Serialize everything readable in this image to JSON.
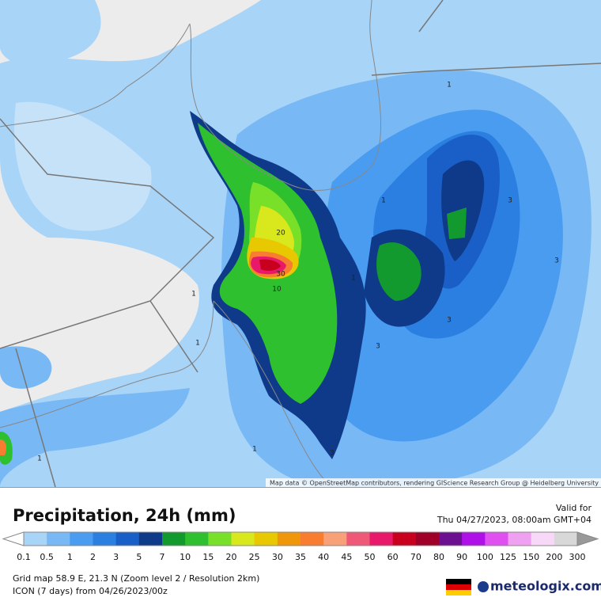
{
  "map": {
    "attribution": "Map data © OpenStreetMap contributors, rendering GIScience Research Group @ Heidelberg University",
    "contour_labels": [
      "1",
      "1",
      "1",
      "1",
      "1",
      "1",
      "1",
      "3",
      "3",
      "3",
      "3",
      "3",
      "10",
      "20",
      "30"
    ]
  },
  "header": {
    "title": "Precipitation, 24h (mm)",
    "valid_label": "Valid for",
    "valid_time": "Thu 04/27/2023, 08:00am GMT+04"
  },
  "legend": {
    "labels": [
      "0.1",
      "0.5",
      "1",
      "2",
      "3",
      "5",
      "7",
      "10",
      "15",
      "20",
      "25",
      "30",
      "35",
      "40",
      "45",
      "50",
      "60",
      "70",
      "80",
      "90",
      "100",
      "125",
      "150",
      "200",
      "300"
    ],
    "colors": [
      "#a8d4f8",
      "#78b8f5",
      "#4a9cf0",
      "#2a7fe0",
      "#1a5fc8",
      "#0f3a8a",
      "#139a2e",
      "#2ec02e",
      "#78e028",
      "#d8e81c",
      "#e8c800",
      "#f0960a",
      "#f87d30",
      "#f8a078",
      "#f05878",
      "#e8186a",
      "#c8001e",
      "#a00028",
      "#6a1090",
      "#b010e8",
      "#e050f0",
      "#f0a0f0",
      "#f8d8f8",
      "#d8d8d8"
    ]
  },
  "footer": {
    "grid_info": "Grid map 58.9 E, 21.3 N (Zoom level 2 / Resolution 2km)",
    "model_info": "ICON (7 days) from  04/26/2023/00z",
    "logo": "meteologix.com"
  }
}
